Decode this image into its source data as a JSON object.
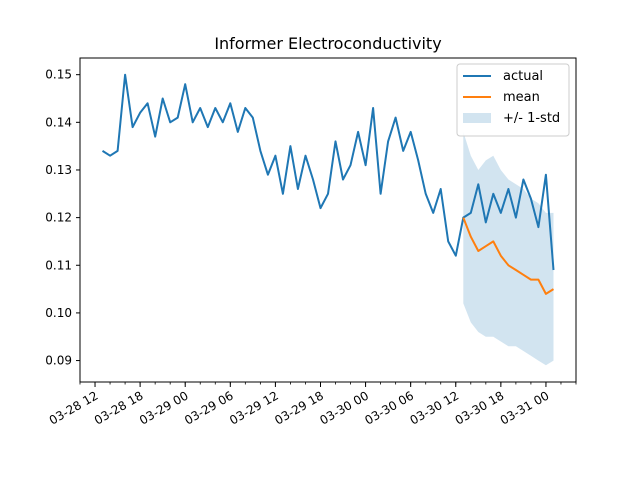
{
  "chart_data": {
    "type": "line",
    "title": "Informer Electroconductivity",
    "xlabel": "",
    "ylabel": "",
    "x_range": [
      "2026-03-28 10:00",
      "2026-03-31 04:00"
    ],
    "ylim": [
      0.0855,
      0.1535
    ],
    "yticks": [
      0.09,
      0.1,
      0.11,
      0.12,
      0.13,
      0.14,
      0.15
    ],
    "ytick_labels": [
      "0.09",
      "0.10",
      "0.11",
      "0.12",
      "0.13",
      "0.14",
      "0.15"
    ],
    "xticks": [
      "2026-03-28 12:00",
      "2026-03-28 18:00",
      "2026-03-29 00:00",
      "2026-03-29 06:00",
      "2026-03-29 12:00",
      "2026-03-29 18:00",
      "2026-03-30 00:00",
      "2026-03-30 06:00",
      "2026-03-30 12:00",
      "2026-03-30 18:00",
      "2026-03-31 00:00"
    ],
    "xtick_labels": [
      "03-28 12",
      "03-28 18",
      "03-29 00",
      "03-29 06",
      "03-29 12",
      "03-29 18",
      "03-30 00",
      "03-30 06",
      "03-30 12",
      "03-30 18",
      "03-31 00"
    ],
    "grid": false,
    "legend_position": "top-right",
    "legend": [
      "actual",
      "mean",
      "+/- 1-std"
    ],
    "series": [
      {
        "name": "actual",
        "color": "#1f77b4",
        "x": [
          "2026-03-28 13:00",
          "2026-03-28 14:00",
          "2026-03-28 15:00",
          "2026-03-28 16:00",
          "2026-03-28 17:00",
          "2026-03-28 18:00",
          "2026-03-28 19:00",
          "2026-03-28 20:00",
          "2026-03-28 21:00",
          "2026-03-28 22:00",
          "2026-03-28 23:00",
          "2026-03-29 00:00",
          "2026-03-29 01:00",
          "2026-03-29 02:00",
          "2026-03-29 03:00",
          "2026-03-29 04:00",
          "2026-03-29 05:00",
          "2026-03-29 06:00",
          "2026-03-29 07:00",
          "2026-03-29 08:00",
          "2026-03-29 09:00",
          "2026-03-29 10:00",
          "2026-03-29 11:00",
          "2026-03-29 12:00",
          "2026-03-29 13:00",
          "2026-03-29 14:00",
          "2026-03-29 15:00",
          "2026-03-29 16:00",
          "2026-03-29 17:00",
          "2026-03-29 18:00",
          "2026-03-29 19:00",
          "2026-03-29 20:00",
          "2026-03-29 21:00",
          "2026-03-29 22:00",
          "2026-03-29 23:00",
          "2026-03-30 00:00",
          "2026-03-30 01:00",
          "2026-03-30 02:00",
          "2026-03-30 03:00",
          "2026-03-30 04:00",
          "2026-03-30 05:00",
          "2026-03-30 06:00",
          "2026-03-30 07:00",
          "2026-03-30 08:00",
          "2026-03-30 09:00",
          "2026-03-30 10:00",
          "2026-03-30 11:00",
          "2026-03-30 12:00",
          "2026-03-30 13:00",
          "2026-03-30 14:00",
          "2026-03-30 15:00",
          "2026-03-30 16:00",
          "2026-03-30 17:00",
          "2026-03-30 18:00",
          "2026-03-30 19:00",
          "2026-03-30 20:00",
          "2026-03-30 21:00",
          "2026-03-30 22:00",
          "2026-03-30 23:00",
          "2026-03-31 00:00",
          "2026-03-31 01:00"
        ],
        "values": [
          0.134,
          0.133,
          0.134,
          0.15,
          0.139,
          0.142,
          0.144,
          0.137,
          0.145,
          0.14,
          0.141,
          0.148,
          0.14,
          0.143,
          0.139,
          0.143,
          0.14,
          0.144,
          0.138,
          0.143,
          0.141,
          0.134,
          0.129,
          0.133,
          0.125,
          0.135,
          0.126,
          0.133,
          0.128,
          0.122,
          0.125,
          0.136,
          0.128,
          0.131,
          0.138,
          0.131,
          0.143,
          0.125,
          0.136,
          0.141,
          0.134,
          0.138,
          0.132,
          0.125,
          0.121,
          0.126,
          0.115,
          0.112,
          0.12,
          0.121,
          0.127,
          0.119,
          0.125,
          0.121,
          0.126,
          0.12,
          0.128,
          0.124,
          0.118,
          0.129,
          0.109
        ]
      },
      {
        "name": "mean",
        "color": "#ff7f0e",
        "x": [
          "2026-03-30 13:00",
          "2026-03-30 14:00",
          "2026-03-30 15:00",
          "2026-03-30 16:00",
          "2026-03-30 17:00",
          "2026-03-30 18:00",
          "2026-03-30 19:00",
          "2026-03-30 20:00",
          "2026-03-30 21:00",
          "2026-03-30 22:00",
          "2026-03-30 23:00",
          "2026-03-31 00:00",
          "2026-03-31 01:00"
        ],
        "values": [
          0.12,
          0.116,
          0.113,
          0.114,
          0.115,
          0.112,
          0.11,
          0.109,
          0.108,
          0.107,
          0.107,
          0.104,
          0.105
        ]
      }
    ],
    "band": {
      "name": "+/- 1-std",
      "color": "#1f77b4",
      "opacity": 0.2,
      "x": [
        "2026-03-30 13:00",
        "2026-03-30 14:00",
        "2026-03-30 15:00",
        "2026-03-30 16:00",
        "2026-03-30 17:00",
        "2026-03-30 18:00",
        "2026-03-30 19:00",
        "2026-03-30 20:00",
        "2026-03-30 21:00",
        "2026-03-30 22:00",
        "2026-03-30 23:00",
        "2026-03-31 00:00",
        "2026-03-31 01:00"
      ],
      "lower": [
        0.102,
        0.098,
        0.096,
        0.095,
        0.095,
        0.094,
        0.093,
        0.093,
        0.092,
        0.091,
        0.09,
        0.089,
        0.09
      ],
      "upper": [
        0.138,
        0.133,
        0.13,
        0.132,
        0.133,
        0.13,
        0.128,
        0.127,
        0.126,
        0.124,
        0.123,
        0.121,
        0.121
      ]
    }
  }
}
